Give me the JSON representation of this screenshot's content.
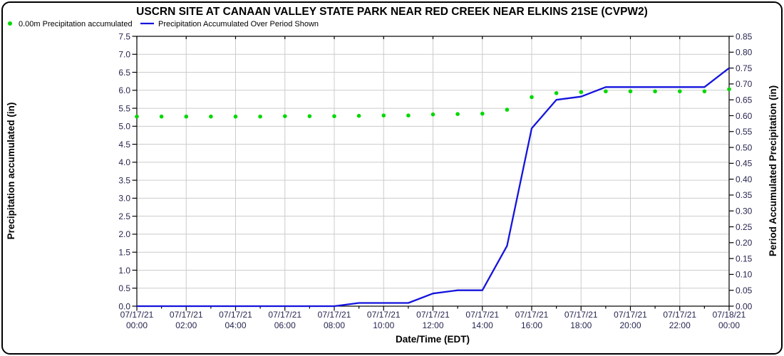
{
  "chart_data": {
    "type": "line",
    "title": "USCRN SITE AT CANAAN VALLEY STATE PARK NEAR RED CREEK NEAR ELKINS 21SE (CVPW2)",
    "legend_position": "top-left",
    "grid": {
      "on": true,
      "color": "#cccccc"
    },
    "x_axis": {
      "label": "Date/Time (EDT)",
      "range_hours": [
        0,
        24
      ],
      "major_tick_every_hours": 2,
      "minor_tick_every_hours": 1,
      "tick_labels": [
        {
          "date": "07/17/21",
          "time": "00:00"
        },
        {
          "date": "07/17/21",
          "time": "02:00"
        },
        {
          "date": "07/17/21",
          "time": "04:00"
        },
        {
          "date": "07/17/21",
          "time": "06:00"
        },
        {
          "date": "07/17/21",
          "time": "08:00"
        },
        {
          "date": "07/17/21",
          "time": "10:00"
        },
        {
          "date": "07/17/21",
          "time": "12:00"
        },
        {
          "date": "07/17/21",
          "time": "14:00"
        },
        {
          "date": "07/17/21",
          "time": "16:00"
        },
        {
          "date": "07/17/21",
          "time": "18:00"
        },
        {
          "date": "07/17/21",
          "time": "20:00"
        },
        {
          "date": "07/17/21",
          "time": "22:00"
        },
        {
          "date": "07/18/21",
          "time": "00:00"
        }
      ]
    },
    "left_axis": {
      "label": "Precipitation accumulated (in)",
      "min": 0.0,
      "max": 7.5,
      "tick_step": 0.5,
      "decimals": 1
    },
    "right_axis": {
      "label": "Period Accumulated Precipitation (in)",
      "min": 0.0,
      "max": 0.85,
      "tick_step": 0.05,
      "decimals": 2
    },
    "series": [
      {
        "name": "0.00m Precipitation accumulated",
        "style": "points",
        "axis": "left",
        "color": "#00d800",
        "hours": [
          0,
          1,
          2,
          3,
          4,
          5,
          6,
          7,
          8,
          9,
          10,
          11,
          12,
          13,
          14,
          15,
          16,
          17,
          18,
          19,
          20,
          21,
          22,
          23,
          24
        ],
        "values": [
          5.27,
          5.27,
          5.27,
          5.27,
          5.27,
          5.27,
          5.28,
          5.28,
          5.28,
          5.29,
          5.3,
          5.3,
          5.33,
          5.34,
          5.35,
          5.46,
          5.81,
          5.92,
          5.95,
          5.97,
          5.97,
          5.97,
          5.97,
          5.97,
          6.03
        ]
      },
      {
        "name": "Precipitation Accumulated Over Period Shown",
        "style": "line",
        "axis": "right",
        "color": "#1414dd",
        "hours": [
          0,
          1,
          2,
          3,
          4,
          5,
          6,
          7,
          8,
          9,
          10,
          11,
          12,
          13,
          14,
          15,
          16,
          17,
          18,
          19,
          20,
          21,
          22,
          23,
          24
        ],
        "values": [
          0.0,
          0.0,
          0.0,
          0.0,
          0.0,
          0.0,
          0.0,
          0.0,
          0.0,
          0.01,
          0.01,
          0.01,
          0.04,
          0.05,
          0.05,
          0.19,
          0.56,
          0.65,
          0.66,
          0.69,
          0.69,
          0.69,
          0.69,
          0.69,
          0.75
        ]
      }
    ],
    "colors": {
      "frame": "#000000",
      "tick_label": "#262650",
      "background": "#ffffff"
    }
  }
}
